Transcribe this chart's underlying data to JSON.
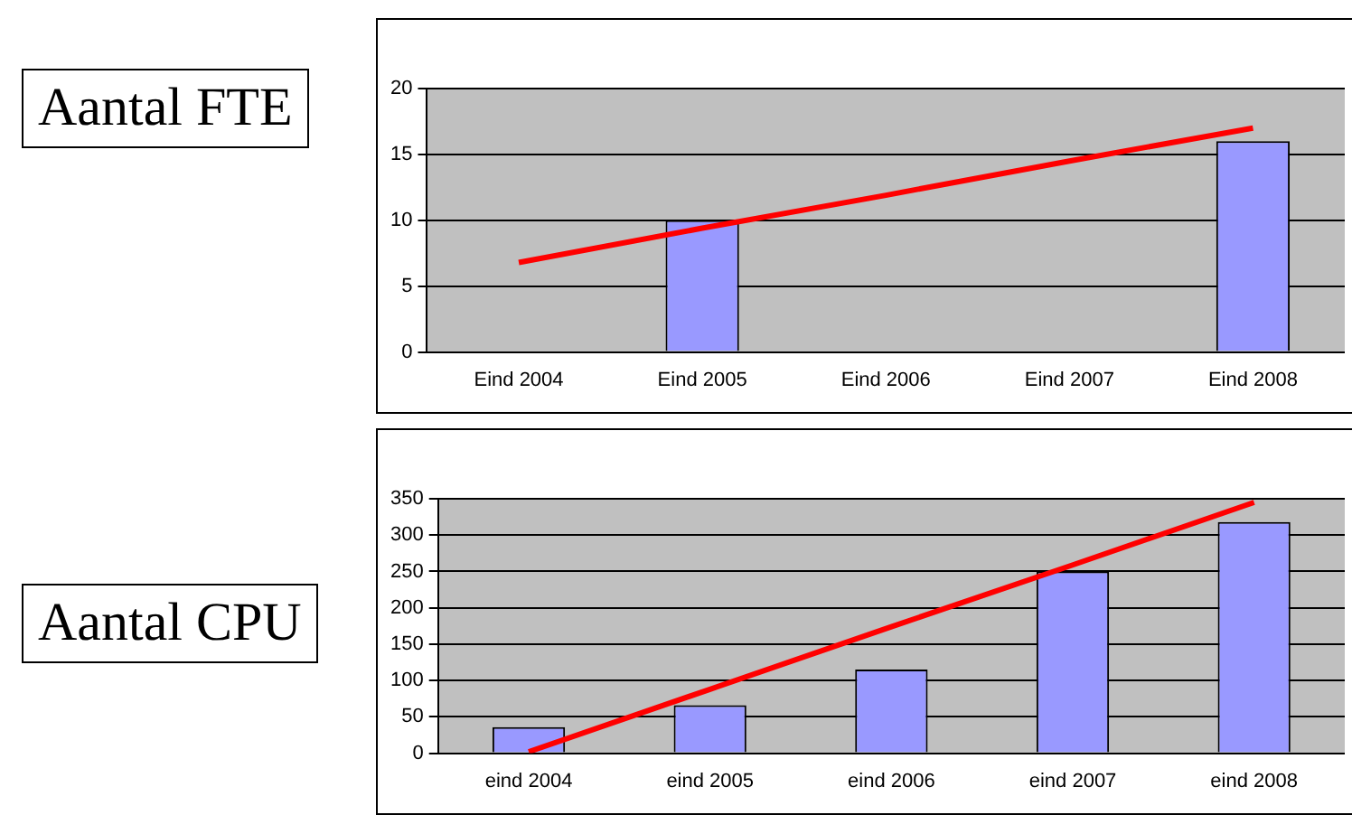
{
  "chart_data": [
    {
      "type": "bar",
      "ylabel": "Aantal FTE",
      "categories": [
        "Eind 2004",
        "Eind 2005",
        "Eind 2006",
        "Eind 2007",
        "Eind 2008"
      ],
      "series": [
        {
          "color": "#9999ff",
          "values": [
            null,
            10,
            null,
            null,
            16
          ]
        },
        {
          "type": "line",
          "color": "#ff0000",
          "values": [
            6.8,
            9.4,
            11.9,
            14.5,
            17
          ]
        }
      ],
      "ylim": [
        0,
        20
      ],
      "yticks": [
        0,
        5,
        10,
        15,
        20
      ],
      "grid": "y",
      "legend": false,
      "marker": "none"
    },
    {
      "type": "bar",
      "ylabel": "Aantal CPU",
      "categories": [
        "eind 2004",
        "eind 2005",
        "eind 2006",
        "eind 2007",
        "eind 2008"
      ],
      "series": [
        {
          "color": "#9999ff",
          "values": [
            36,
            66,
            115,
            250,
            318
          ]
        },
        {
          "type": "line",
          "color": "#ff0000",
          "values": [
            2,
            88,
            174,
            259,
            345
          ]
        }
      ],
      "ylim": [
        0,
        350
      ],
      "yticks": [
        0,
        50,
        100,
        150,
        200,
        250,
        300,
        350
      ],
      "grid": "y",
      "legend": false,
      "marker": "none"
    }
  ]
}
